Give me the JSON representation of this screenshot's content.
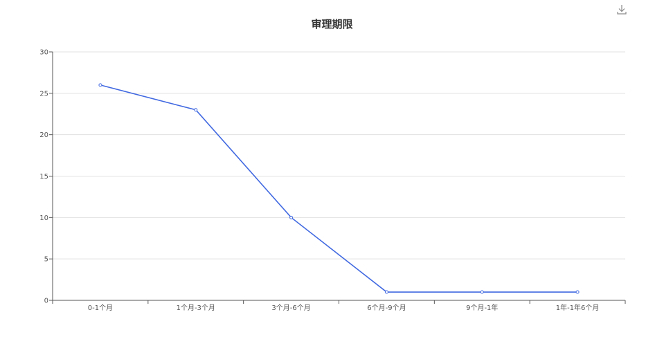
{
  "chart_data": {
    "type": "line",
    "title": "审理期限",
    "categories": [
      "0-1个月",
      "1个月-3个月",
      "3个月-6个月",
      "6个月-9个月",
      "9个月-1年",
      "1年-1年6个月"
    ],
    "series": [
      {
        "values": [
          26,
          23,
          10,
          1,
          1,
          1
        ],
        "color": "#4169e1"
      }
    ],
    "ylim": [
      0,
      30
    ],
    "yticks": [
      0,
      5,
      10,
      15,
      20,
      25,
      30
    ],
    "grid": true,
    "xlabel": "",
    "ylabel": ""
  },
  "toolbar": {
    "download_icon": "download-icon"
  },
  "colors": {
    "line": "#4169e1",
    "grid": "#e0e0e0",
    "axis": "#555555",
    "title": "#333333"
  }
}
